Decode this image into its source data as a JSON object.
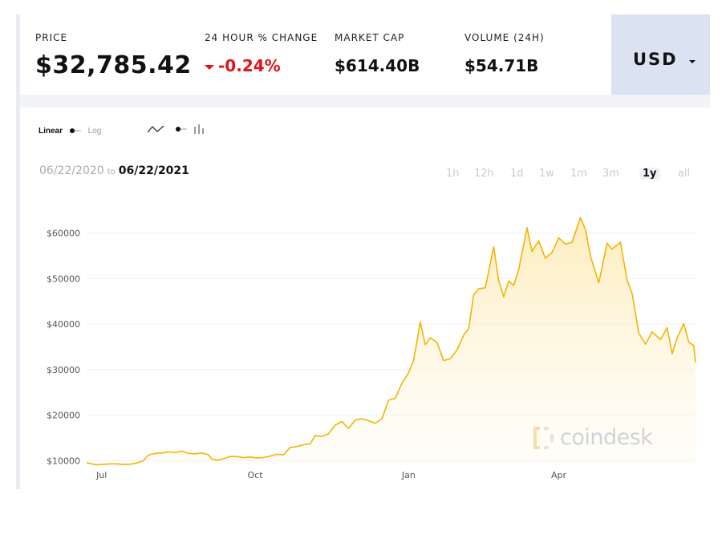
{
  "stats": {
    "price": {
      "label": "PRICE",
      "value": "$32,785.42"
    },
    "change": {
      "label": "24 HOUR % CHANGE",
      "value": "-0.24%"
    },
    "market_cap": {
      "label": "MARKET CAP",
      "value": "$614.40B"
    },
    "volume": {
      "label": "VOLUME (24H)",
      "value": "$54.71B"
    }
  },
  "currency": {
    "selected": "USD"
  },
  "controls": {
    "scale_linear": "Linear",
    "scale_log": "Log",
    "chart_type_icons": [
      "line-chart-icon",
      "bar-chart-icon"
    ]
  },
  "date_range": {
    "from": "06/22/2020",
    "to_word": "to",
    "to": "06/22/2021"
  },
  "ranges": [
    {
      "label": "1h",
      "active": false
    },
    {
      "label": "12h",
      "active": false
    },
    {
      "label": "1d",
      "active": false
    },
    {
      "label": "1w",
      "active": false
    },
    {
      "label": "1m",
      "active": false
    },
    {
      "label": "3m",
      "active": false
    },
    {
      "label": "1y",
      "active": true
    },
    {
      "label": "all",
      "active": false
    }
  ],
  "watermark": "coindesk",
  "colors": {
    "line": "#f5b300",
    "negative": "#e3131a",
    "selector_bg": "#dbe2f2"
  },
  "chart_data": {
    "type": "area",
    "title": "",
    "xlabel": "",
    "ylabel": "",
    "x_range": [
      "2020-06-22",
      "2021-06-22"
    ],
    "ylim": [
      9000,
      64000
    ],
    "yticks": [
      10000,
      20000,
      30000,
      40000,
      50000,
      60000
    ],
    "ytick_labels": [
      "$10000",
      "$20000",
      "$30000",
      "$40000",
      "$50000",
      "$60000"
    ],
    "xtick_dates": [
      "2020-07-01",
      "2020-10-01",
      "2021-01-01",
      "2021-04-01"
    ],
    "xtick_labels": [
      "Jul",
      "Oct",
      "Jan",
      "Apr"
    ],
    "grid": true,
    "series": [
      {
        "x": [
          "2020-06-22",
          "2020-06-25",
          "2020-06-28",
          "2020-07-02",
          "2020-07-06",
          "2020-07-10",
          "2020-07-14",
          "2020-07-18",
          "2020-07-22",
          "2020-07-26",
          "2020-07-29",
          "2020-08-02",
          "2020-08-06",
          "2020-08-10",
          "2020-08-14",
          "2020-08-18",
          "2020-08-22",
          "2020-08-26",
          "2020-08-30",
          "2020-09-03",
          "2020-09-05",
          "2020-09-08",
          "2020-09-12",
          "2020-09-16",
          "2020-09-20",
          "2020-09-24",
          "2020-09-28",
          "2020-10-02",
          "2020-10-06",
          "2020-10-10",
          "2020-10-14",
          "2020-10-18",
          "2020-10-22",
          "2020-10-26",
          "2020-10-30",
          "2020-11-03",
          "2020-11-06",
          "2020-11-10",
          "2020-11-14",
          "2020-11-18",
          "2020-11-22",
          "2020-11-26",
          "2020-11-30",
          "2020-12-04",
          "2020-12-08",
          "2020-12-12",
          "2020-12-16",
          "2020-12-20",
          "2020-12-24",
          "2020-12-28",
          "2021-01-01",
          "2021-01-04",
          "2021-01-08",
          "2021-01-11",
          "2021-01-14",
          "2021-01-18",
          "2021-01-22",
          "2021-01-26",
          "2021-01-30",
          "2021-02-03",
          "2021-02-06",
          "2021-02-09",
          "2021-02-12",
          "2021-02-16",
          "2021-02-21",
          "2021-02-24",
          "2021-02-27",
          "2021-03-02",
          "2021-03-05",
          "2021-03-08",
          "2021-03-13",
          "2021-03-16",
          "2021-03-20",
          "2021-03-24",
          "2021-03-28",
          "2021-04-01",
          "2021-04-05",
          "2021-04-09",
          "2021-04-14",
          "2021-04-17",
          "2021-04-20",
          "2021-04-25",
          "2021-04-30",
          "2021-05-03",
          "2021-05-08",
          "2021-05-12",
          "2021-05-15",
          "2021-05-19",
          "2021-05-23",
          "2021-05-27",
          "2021-06-01",
          "2021-06-05",
          "2021-06-08",
          "2021-06-11",
          "2021-06-15",
          "2021-06-18",
          "2021-06-21",
          "2021-06-22"
        ],
        "values": [
          9600,
          9300,
          9100,
          9200,
          9300,
          9300,
          9200,
          9200,
          9500,
          10000,
          11200,
          11600,
          11700,
          11900,
          11800,
          12100,
          11600,
          11500,
          11700,
          11300,
          10400,
          10100,
          10400,
          10900,
          10900,
          10700,
          10800,
          10600,
          10700,
          11000,
          11400,
          11300,
          12900,
          13100,
          13500,
          13700,
          15500,
          15300,
          15900,
          17800,
          18600,
          17100,
          18900,
          19200,
          18800,
          18200,
          19200,
          23300,
          23700,
          27000,
          29300,
          32000,
          40500,
          35500,
          37000,
          36000,
          32000,
          32400,
          34300,
          37600,
          39000,
          46400,
          47800,
          48000,
          57000,
          49600,
          46000,
          49500,
          48500,
          52000,
          61200,
          56000,
          58300,
          54500,
          55800,
          59000,
          57600,
          58000,
          63400,
          60800,
          55000,
          49100,
          57800,
          56500,
          58000,
          49700,
          46700,
          38000,
          35600,
          38300,
          36600,
          39200,
          33500,
          37000,
          40100,
          36000,
          35300,
          31600
        ]
      }
    ]
  }
}
